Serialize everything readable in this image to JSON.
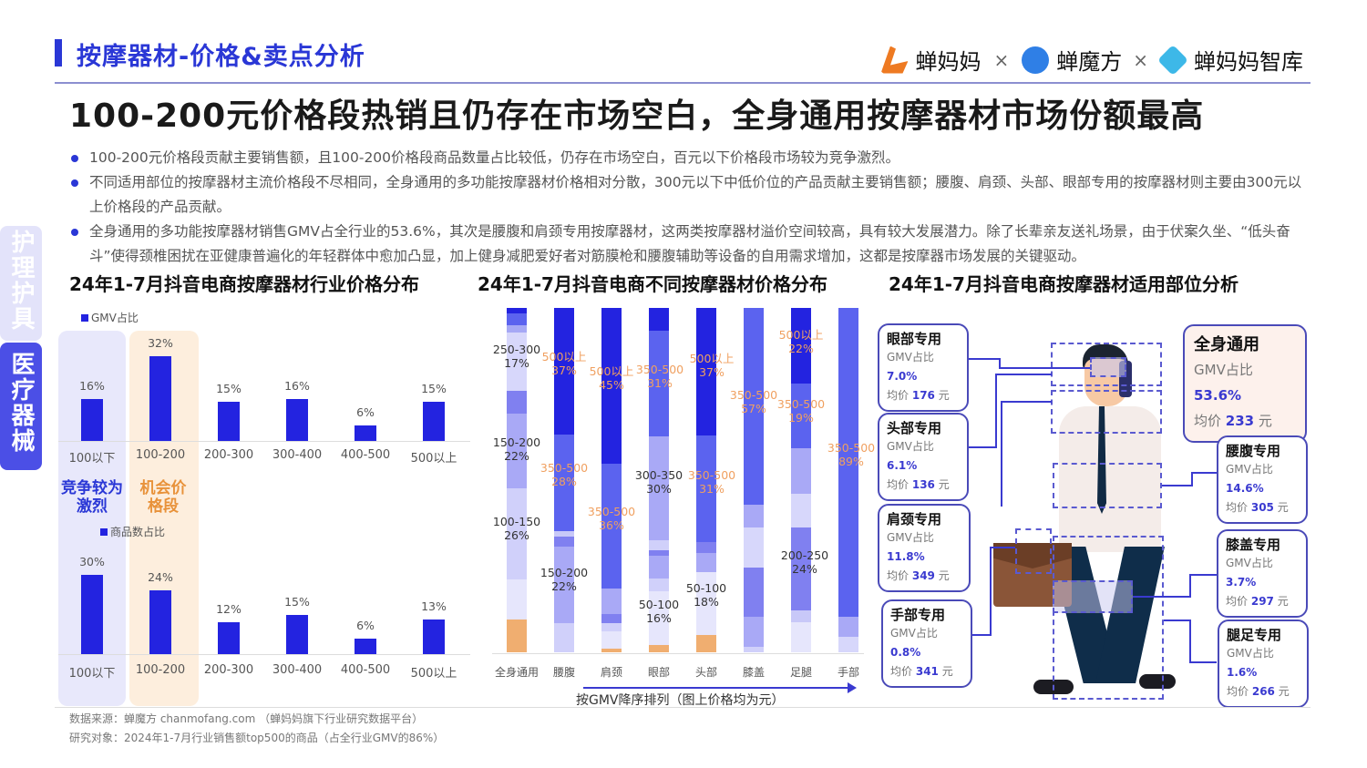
{
  "header": {
    "section_title": "按摩器材-价格&卖点分析",
    "logos": [
      "蝉妈妈",
      "蝉魔方",
      "蝉妈妈智库"
    ],
    "separator": "×",
    "main_title": "100-200元价格段热销且仍存在市场空白，全身通用按摩器材市场份额最高"
  },
  "bullets": [
    "100-200元价格段贡献主要销售额，且100-200价格段商品数量占比较低，仍存在市场空白，百元以下价格段市场较为竞争激烈。",
    "不同适用部位的按摩器材主流价格段不尽相同，全身通用的多功能按摩器材价格相对分散，300元以下中低价位的产品贡献主要销售额；腰腹、肩颈、头部、眼部专用的按摩器材则主要由300元以上价格段的产品贡献。",
    "全身通用的多功能按摩器材销售GMV占全行业的53.6%，其次是腰腹和肩颈专用按摩器材，这两类按摩器材溢价空间较高，具有较大发展潜力。除了长辈亲友送礼场景，由于伏案久坐、“低头奋斗”使得颈椎困扰在亚健康普遍化的年轻群体中愈加凸显，加上健身减肥爱好者对筋膜枪和腰腹辅助等设备的自用需求增加，这都是按摩器市场发展的关键驱动。"
  ],
  "side_tabs": [
    {
      "label": "护理护具",
      "active": false
    },
    {
      "label": "医疗器械",
      "active": true
    }
  ],
  "notes": {
    "competitive": "竞争较为激烈",
    "opportunity": "机会价格段"
  },
  "chart_data": [
    {
      "type": "bar",
      "title": "24年1-7月抖音电商按摩器材行业价格分布",
      "legend": "GMV占比",
      "categories": [
        "100以下",
        "100-200",
        "200-300",
        "300-400",
        "400-500",
        "500以上"
      ],
      "values": [
        16,
        32,
        15,
        16,
        6,
        15
      ],
      "labels": [
        "16%",
        "32%",
        "15%",
        "16%",
        "6%",
        "15%"
      ],
      "ylabel": "",
      "xlabel": "",
      "color": "#2323e0"
    },
    {
      "type": "bar",
      "title": "24年1-7月抖音电商按摩器材行业价格分布",
      "legend": "商品数占比",
      "categories": [
        "100以下",
        "100-200",
        "200-300",
        "300-400",
        "400-500",
        "500以上"
      ],
      "values": [
        30,
        24,
        12,
        15,
        6,
        13
      ],
      "labels": [
        "30%",
        "24%",
        "12%",
        "15%",
        "6%",
        "13%"
      ],
      "color": "#2323e0"
    },
    {
      "type": "bar",
      "stacked": true,
      "title": "24年1-7月抖音电商不同按摩器材价格分布",
      "xlabel": "按GMV降序排列（图上价格均为元）",
      "categories": [
        "全身通用",
        "腰腹",
        "肩颈",
        "眼部",
        "头部",
        "膝盖",
        "足腿",
        "手部"
      ],
      "annotations": [
        {
          "category": "全身通用",
          "labels": [
            {
              "range": "250-300",
              "pct": "17%"
            },
            {
              "range": "150-200",
              "pct": "22%"
            },
            {
              "range": "100-150",
              "pct": "26%"
            }
          ]
        },
        {
          "category": "腰腹",
          "labels": [
            {
              "range": "500以上",
              "pct": "37%"
            },
            {
              "range": "350-500",
              "pct": "28%"
            },
            {
              "range": "150-200",
              "pct": "22%"
            }
          ]
        },
        {
          "category": "肩颈",
          "labels": [
            {
              "range": "500以上",
              "pct": "45%"
            },
            {
              "range": "350-500",
              "pct": "36%"
            }
          ]
        },
        {
          "category": "眼部",
          "labels": [
            {
              "range": "350-500",
              "pct": "31%"
            },
            {
              "range": "300-350",
              "pct": "30%"
            },
            {
              "range": "50-100",
              "pct": "16%"
            }
          ]
        },
        {
          "category": "头部",
          "labels": [
            {
              "range": "500以上",
              "pct": "37%"
            },
            {
              "range": "350-500",
              "pct": "31%"
            },
            {
              "range": "50-100",
              "pct": "18%"
            }
          ]
        },
        {
          "category": "膝盖",
          "labels": [
            {
              "range": "350-500",
              "pct": "57%"
            }
          ]
        },
        {
          "category": "足腿",
          "labels": [
            {
              "range": "500以上",
              "pct": "22%"
            },
            {
              "range": "350-500",
              "pct": "19%"
            },
            {
              "range": "200-250",
              "pct": "24%"
            }
          ]
        },
        {
          "category": "手部",
          "labels": [
            {
              "range": "350-500",
              "pct": "89%"
            }
          ]
        }
      ],
      "segments": [
        [
          [
            "#2323e0",
            3
          ],
          [
            "#5b63ef",
            6
          ],
          [
            "#a6a8f5",
            4
          ],
          [
            "#d7d7fb",
            30
          ],
          [
            "#8080f0",
            12
          ],
          [
            "#a9a9f6",
            39
          ],
          [
            "#d0d0fa",
            47
          ],
          [
            "#e6e6fc",
            21
          ],
          [
            "#f0ae70",
            17
          ]
        ],
        [
          [
            "#2323e0",
            66
          ],
          [
            "#5b63ef",
            50
          ],
          [
            "#c8c8f8",
            3
          ],
          [
            "#8080f0",
            5
          ],
          [
            "#a9a9f6",
            40
          ],
          [
            "#d0d0fa",
            15
          ]
        ],
        [
          [
            "#2323e0",
            81
          ],
          [
            "#5b63ef",
            65
          ],
          [
            "#a9a9f6",
            13
          ],
          [
            "#8080f0",
            5
          ],
          [
            "#d0d0fa",
            4
          ],
          [
            "#e6e6fc",
            9
          ],
          [
            "#f0ae70",
            2
          ]
        ],
        [
          [
            "#2323e0",
            12
          ],
          [
            "#5b63ef",
            56
          ],
          [
            "#a9a9f6",
            55
          ],
          [
            "#d0d0fa",
            5
          ],
          [
            "#8080f0",
            3
          ],
          [
            "#a9a9f6",
            12
          ],
          [
            "#d0d0fa",
            7
          ],
          [
            "#e6e6fc",
            28
          ],
          [
            "#f0ae70",
            4
          ]
        ],
        [
          [
            "#2323e0",
            67
          ],
          [
            "#5b63ef",
            56
          ],
          [
            "#8080f0",
            6
          ],
          [
            "#a9a9f6",
            10
          ],
          [
            "#e6e6fc",
            33
          ],
          [
            "#f0ae70",
            9
          ]
        ],
        [
          [
            "#5b63ef",
            104
          ],
          [
            "#a9a9f6",
            12
          ],
          [
            "#d7d7fb",
            21
          ],
          [
            "#8080f0",
            26
          ],
          [
            "#a9a9f6",
            16
          ],
          [
            "#d0d0fa",
            3
          ]
        ],
        [
          [
            "#2323e0",
            40
          ],
          [
            "#5b63ef",
            34
          ],
          [
            "#a9a9f6",
            24
          ],
          [
            "#d7d7fb",
            18
          ],
          [
            "#8080f0",
            44
          ],
          [
            "#c8c8f8",
            6
          ],
          [
            "#e6e6fc",
            16
          ]
        ],
        [
          [
            "#5b63ef",
            163
          ],
          [
            "#a9a9f6",
            11
          ],
          [
            "#d7d7fb",
            8
          ]
        ]
      ]
    },
    {
      "type": "table",
      "title": "24年1-7月抖音电商按摩器材适用部位分析",
      "rows": [
        {
          "part": "全身通用",
          "gmv_share": "53.6%",
          "avg_price": "233"
        },
        {
          "part": "眼部专用",
          "gmv_share": "7.0%",
          "avg_price": "176"
        },
        {
          "part": "头部专用",
          "gmv_share": "6.1%",
          "avg_price": "136"
        },
        {
          "part": "肩颈专用",
          "gmv_share": "11.8%",
          "avg_price": "349"
        },
        {
          "part": "手部专用",
          "gmv_share": "0.8%",
          "avg_price": "341"
        },
        {
          "part": "腰腹专用",
          "gmv_share": "14.6%",
          "avg_price": "305"
        },
        {
          "part": "膝盖专用",
          "gmv_share": "3.7%",
          "avg_price": "297"
        },
        {
          "part": "腿足专用",
          "gmv_share": "1.6%",
          "avg_price": "266"
        }
      ]
    }
  ],
  "labels": {
    "gmv_prefix": "GMV占比",
    "price_prefix": "均价",
    "unit": "元"
  },
  "footer": {
    "source": "数据来源：蝉魔方 chanmofang.com （蝉妈妈旗下行业研究数据平台）",
    "scope": "研究对象：2024年1-7月行业销售额top500的商品（占全行业GMV的86%）"
  }
}
